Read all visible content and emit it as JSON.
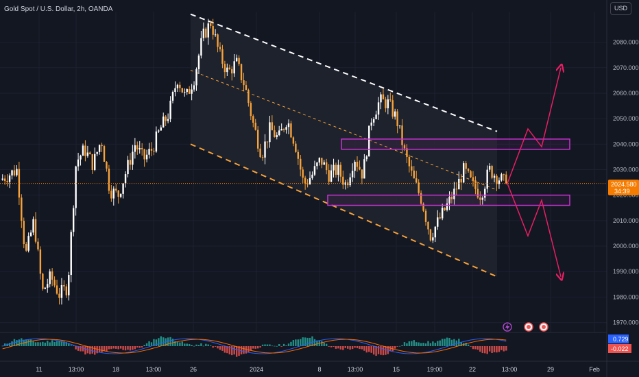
{
  "header": {
    "title": "Gold Spot / U.S. Dollar, 2h, OANDA",
    "currency": "USD"
  },
  "price_axis": {
    "ticks": [
      "2080.000",
      "2070.000",
      "2060.000",
      "2050.000",
      "2040.000",
      "2030.000",
      "2020.000",
      "2010.000",
      "2000.000",
      "1990.000",
      "1980.000",
      "1970.000"
    ]
  },
  "current_price": {
    "value": "2024.580",
    "countdown": "34:39"
  },
  "macd_labels": {
    "histogram": "0.729",
    "signal": "-0.022"
  },
  "time_axis": {
    "ticks": [
      "11",
      "13:00",
      "18",
      "13:00",
      "26",
      "2024",
      "8",
      "13:00",
      "15",
      "19:00",
      "22",
      "13:00",
      "29",
      "Feb"
    ]
  },
  "colors": {
    "background": "#131722",
    "candle_up": "#ffffff",
    "candle_down": "#f7a23b",
    "upper_trendline": "#ffffff",
    "mid_trendline": "#f7a23b",
    "zone_border": "#c832d2",
    "projection": "#e91e63",
    "price_line": "#f57c00",
    "macd_up": "#26a69a",
    "macd_down": "#ef5350",
    "macd_line": "#2962ff",
    "signal_line": "#ff6d00"
  },
  "chart_data": {
    "type": "candlestick",
    "instrument": "Gold Spot / U.S. Dollar",
    "timeframe": "2h",
    "source": "OANDA",
    "ylim": [
      1968,
      2092
    ],
    "current_price": 2024.58,
    "price_path": [
      {
        "date": "2023-12-07",
        "price": 2026
      },
      {
        "date": "2023-12-08",
        "price": 2028
      },
      {
        "date": "2023-12-08",
        "price": 2030
      },
      {
        "date": "2023-12-11",
        "price": 1996
      },
      {
        "date": "2023-12-11",
        "price": 2010
      },
      {
        "date": "2023-12-12",
        "price": 1982
      },
      {
        "date": "2023-12-12",
        "price": 1988
      },
      {
        "date": "2023-12-13",
        "price": 1981
      },
      {
        "date": "2023-12-13",
        "price": 1984
      },
      {
        "date": "2023-12-14",
        "price": 2033
      },
      {
        "date": "2023-12-14",
        "price": 2038
      },
      {
        "date": "2023-12-15",
        "price": 2032
      },
      {
        "date": "2023-12-15",
        "price": 2042
      },
      {
        "date": "2023-12-18",
        "price": 2022
      },
      {
        "date": "2023-12-18",
        "price": 2020
      },
      {
        "date": "2023-12-19",
        "price": 2030
      },
      {
        "date": "2023-12-19",
        "price": 2040
      },
      {
        "date": "2023-12-20",
        "price": 2034
      },
      {
        "date": "2023-12-20",
        "price": 2038
      },
      {
        "date": "2023-12-21",
        "price": 2046
      },
      {
        "date": "2023-12-22",
        "price": 2052
      },
      {
        "date": "2023-12-26",
        "price": 2066
      },
      {
        "date": "2023-12-26",
        "price": 2058
      },
      {
        "date": "2023-12-27",
        "price": 2066
      },
      {
        "date": "2023-12-27",
        "price": 2082
      },
      {
        "date": "2023-12-28",
        "price": 2088
      },
      {
        "date": "2023-12-28",
        "price": 2075
      },
      {
        "date": "2023-12-29",
        "price": 2068
      },
      {
        "date": "2024-01-02",
        "price": 2072
      },
      {
        "date": "2024-01-02",
        "price": 2063
      },
      {
        "date": "2024-01-03",
        "price": 2048
      },
      {
        "date": "2024-01-03",
        "price": 2036
      },
      {
        "date": "2024-01-04",
        "price": 2046
      },
      {
        "date": "2024-01-04",
        "price": 2042
      },
      {
        "date": "2024-01-05",
        "price": 2050
      },
      {
        "date": "2024-01-05",
        "price": 2040
      },
      {
        "date": "2024-01-08",
        "price": 2024
      },
      {
        "date": "2024-01-08",
        "price": 2028
      },
      {
        "date": "2024-01-09",
        "price": 2034
      },
      {
        "date": "2024-01-09",
        "price": 2028
      },
      {
        "date": "2024-01-10",
        "price": 2030
      },
      {
        "date": "2024-01-10",
        "price": 2024
      },
      {
        "date": "2024-01-11",
        "price": 2035
      },
      {
        "date": "2024-01-11",
        "price": 2028
      },
      {
        "date": "2024-01-12",
        "price": 2050
      },
      {
        "date": "2024-01-12",
        "price": 2057
      },
      {
        "date": "2024-01-15",
        "price": 2056
      },
      {
        "date": "2024-01-15",
        "price": 2050
      },
      {
        "date": "2024-01-16",
        "price": 2036
      },
      {
        "date": "2024-01-16",
        "price": 2026
      },
      {
        "date": "2024-01-17",
        "price": 2018
      },
      {
        "date": "2024-01-17",
        "price": 2004
      },
      {
        "date": "2024-01-18",
        "price": 2010
      },
      {
        "date": "2024-01-18",
        "price": 2016
      },
      {
        "date": "2024-01-19",
        "price": 2022
      },
      {
        "date": "2024-01-19",
        "price": 2030
      },
      {
        "date": "2024-01-22",
        "price": 2024
      },
      {
        "date": "2024-01-22",
        "price": 2020
      },
      {
        "date": "2024-01-23",
        "price": 2030
      },
      {
        "date": "2024-01-23",
        "price": 2027
      },
      {
        "date": "2024-01-24",
        "price": 2024.58
      }
    ],
    "channel": {
      "upper": {
        "start": [
          "2023-12-26",
          2091
        ],
        "end": [
          "2024-01-24",
          2045
        ]
      },
      "middle": {
        "start": [
          "2023-12-26",
          2069
        ],
        "end": [
          "2024-01-24",
          2022
        ]
      },
      "lower": {
        "start": [
          "2023-12-26",
          2040
        ],
        "end": [
          "2024-01-24",
          1988
        ]
      }
    },
    "zones": [
      {
        "name": "resistance",
        "from": 2038,
        "to": 2042
      },
      {
        "name": "support",
        "from": 2016,
        "to": 2020
      }
    ],
    "projections": [
      {
        "direction": "up",
        "points": [
          2024.58,
          2046,
          2039,
          2070
        ]
      },
      {
        "direction": "down",
        "points": [
          2024.58,
          2004,
          2018,
          1988
        ]
      }
    ],
    "macd": {
      "histogram": 0.729,
      "signal": -0.022
    }
  }
}
